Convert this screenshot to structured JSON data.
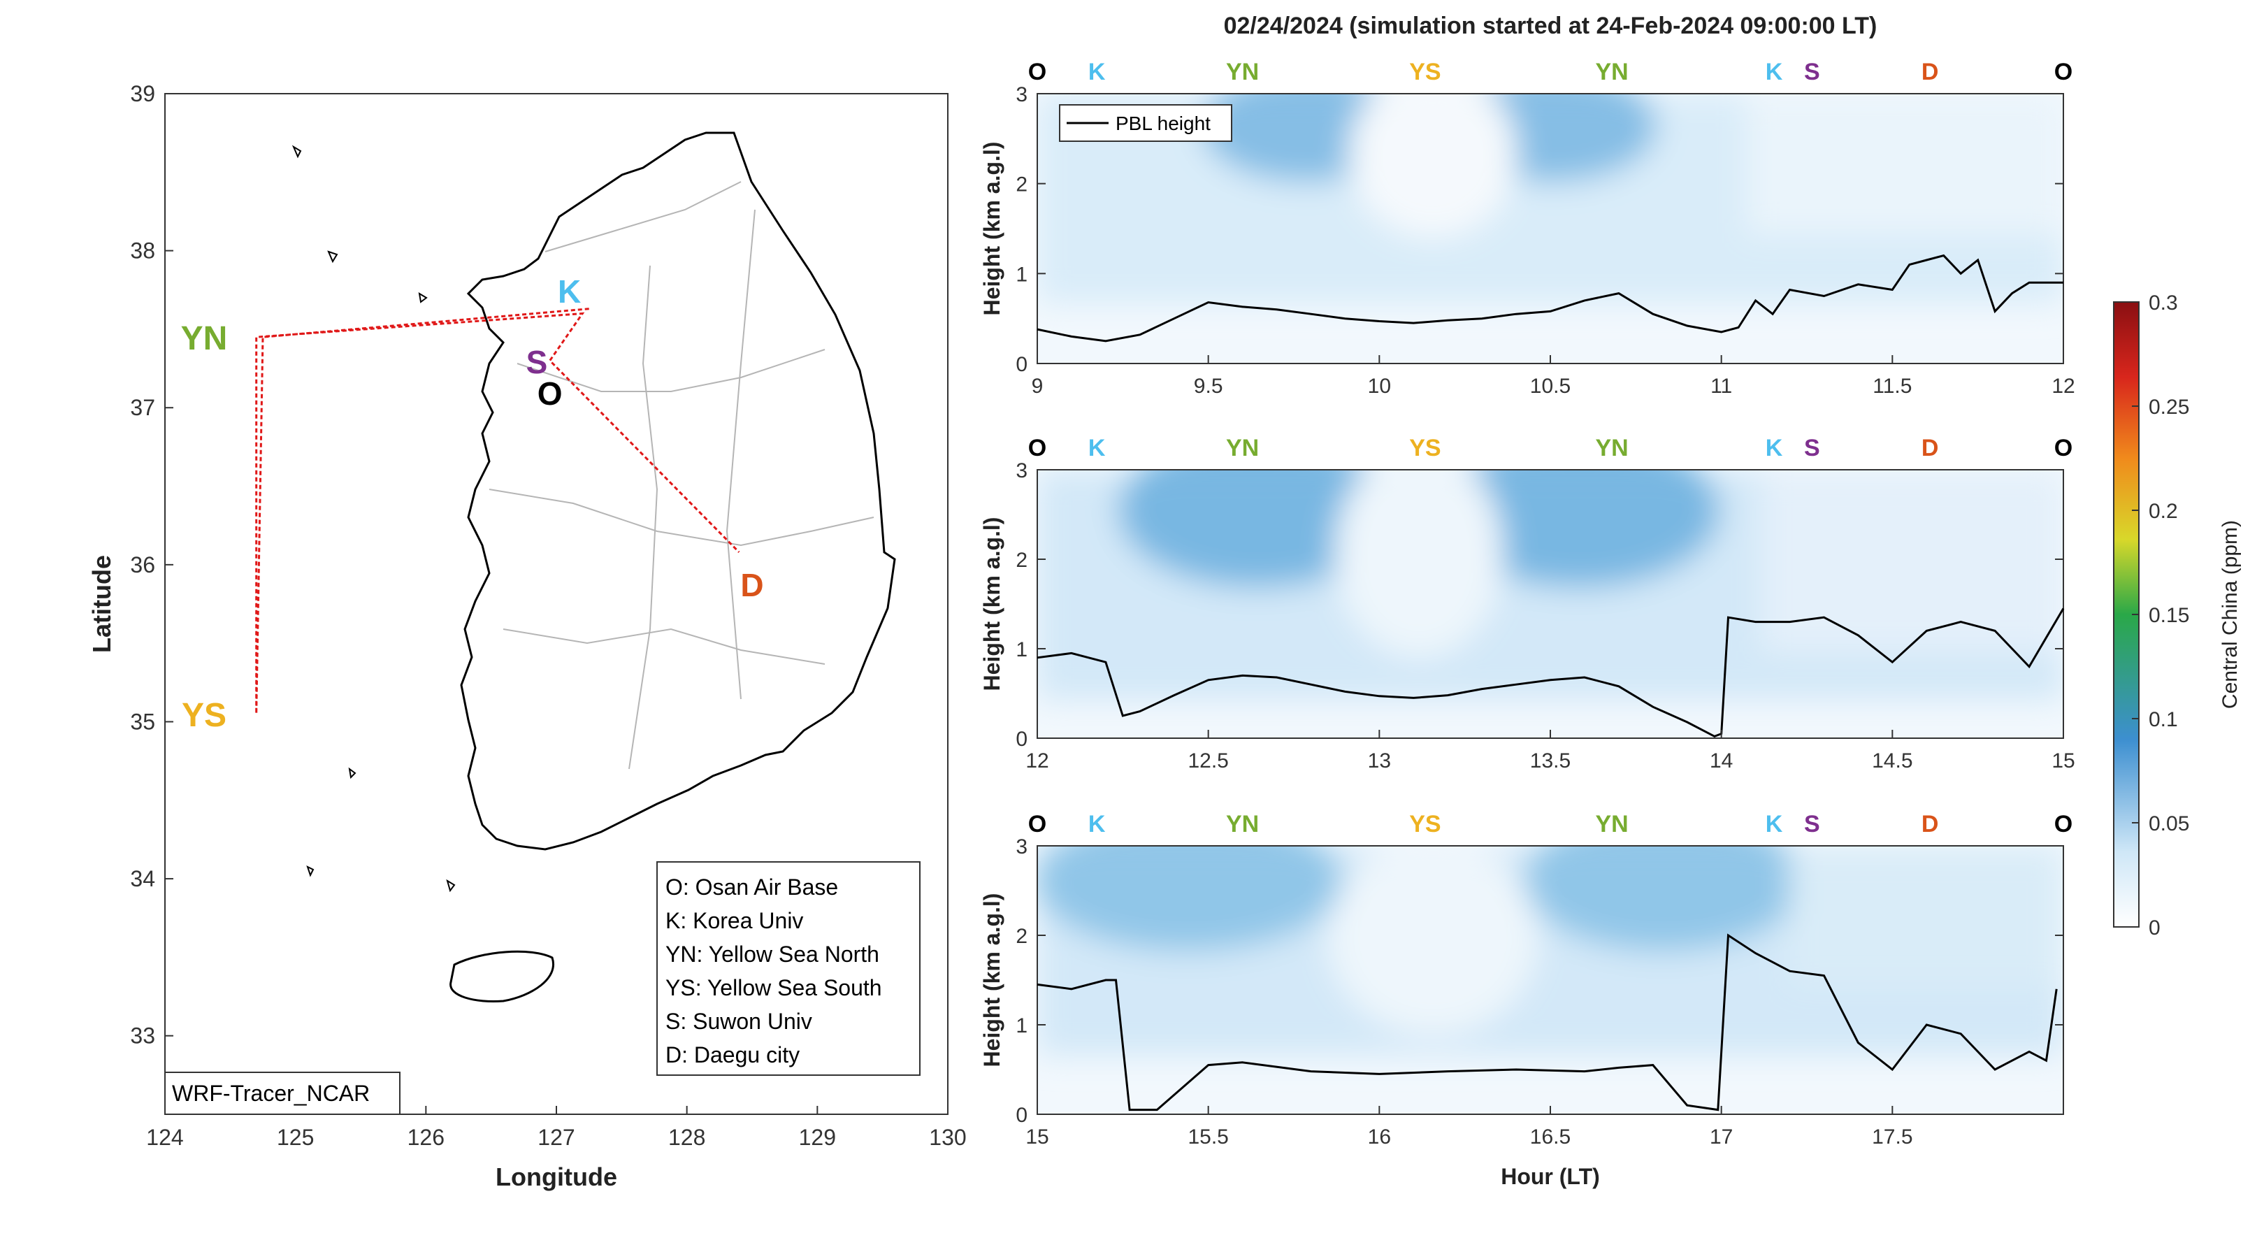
{
  "title": "02/24/2024 (simulation started at 24-Feb-2024 09:00:00 LT)",
  "map": {
    "xlabel": "Longitude",
    "ylabel": "Latitude",
    "xticks": [
      "124",
      "125",
      "126",
      "127",
      "128",
      "129",
      "130"
    ],
    "yticks": [
      "33",
      "34",
      "35",
      "36",
      "37",
      "38",
      "39"
    ],
    "xlim": [
      124,
      130
    ],
    "ylim": [
      32.5,
      39
    ],
    "model_label": "WRF-Tracer_NCAR",
    "sites": [
      {
        "code": "O",
        "lon": 126.95,
        "lat": 37.1,
        "color": "#000000"
      },
      {
        "code": "K",
        "lon": 127.1,
        "lat": 37.75,
        "color": "#4DBEEE"
      },
      {
        "code": "S",
        "lon": 126.85,
        "lat": 37.3,
        "color": "#7E2F8E"
      },
      {
        "code": "D",
        "lon": 128.5,
        "lat": 35.88,
        "color": "#D95319"
      },
      {
        "code": "YN",
        "lon": 124.3,
        "lat": 37.45,
        "color": "#77AC30"
      },
      {
        "code": "YS",
        "lon": 124.3,
        "lat": 35.05,
        "color": "#EDB120"
      }
    ],
    "path": [
      [
        127.25,
        37.63
      ],
      [
        124.75,
        37.45
      ],
      [
        124.7,
        35.05
      ],
      [
        124.7,
        37.45
      ],
      [
        127.2,
        37.6
      ],
      [
        126.95,
        37.3
      ],
      [
        128.4,
        36.08
      ]
    ],
    "legend": [
      "O: Osan Air Base",
      "K: Korea Univ",
      "YN: Yellow Sea North",
      "YS: Yellow Sea South",
      "S: Suwon Univ",
      "D: Daegu city"
    ]
  },
  "panels": {
    "ylabel": "Height (km a.g.l)",
    "xlabel": "Hour (LT)",
    "legend_label": "PBL height",
    "top_labels": [
      "O",
      "K",
      "YN",
      "YS",
      "YN",
      "K",
      "S",
      "D",
      "O"
    ],
    "top_label_colors": [
      "#000000",
      "#4DBEEE",
      "#77AC30",
      "#EDB120",
      "#77AC30",
      "#4DBEEE",
      "#7E2F8E",
      "#D95319",
      "#000000"
    ],
    "items": [
      {
        "xticks": [
          "9",
          "9.5",
          "10",
          "10.5",
          "11",
          "11.5",
          "12"
        ],
        "yticks": [
          "0",
          "1",
          "2",
          "3"
        ]
      },
      {
        "xticks": [
          "12",
          "12.5",
          "13",
          "13.5",
          "14",
          "14.5",
          "15"
        ],
        "yticks": [
          "0",
          "1",
          "2",
          "3"
        ]
      },
      {
        "xticks": [
          "15",
          "15.5",
          "16",
          "16.5",
          "17",
          "17.5"
        ],
        "yticks": [
          "0",
          "1",
          "2",
          "3"
        ]
      }
    ]
  },
  "colorbar": {
    "label": "Central China (ppm)",
    "ticks": [
      "0",
      "0.05",
      "0.1",
      "0.15",
      "0.2",
      "0.25",
      "0.3"
    ],
    "range": [
      0,
      0.3
    ]
  },
  "chart_data": [
    {
      "type": "line",
      "title": "02/24/2024 (simulation started at 24-Feb-2024 09:00:00 LT)",
      "series": [
        {
          "name": "PBL height",
          "x": [
            9.0,
            9.1,
            9.2,
            9.3,
            9.4,
            9.5,
            9.6,
            9.7,
            9.8,
            9.9,
            10.0,
            10.1,
            10.2,
            10.3,
            10.4,
            10.5,
            10.6,
            10.7,
            10.8,
            10.9,
            11.0,
            11.05,
            11.1,
            11.15,
            11.2,
            11.3,
            11.4,
            11.5,
            11.55,
            11.6,
            11.65,
            11.7,
            11.75,
            11.8,
            11.85,
            11.9,
            12.0
          ],
          "y": [
            0.38,
            0.3,
            0.25,
            0.32,
            0.5,
            0.68,
            0.63,
            0.6,
            0.55,
            0.5,
            0.47,
            0.45,
            0.48,
            0.5,
            0.55,
            0.58,
            0.7,
            0.78,
            0.55,
            0.42,
            0.35,
            0.4,
            0.7,
            0.55,
            0.82,
            0.75,
            0.88,
            0.82,
            1.1,
            1.15,
            1.2,
            1.0,
            1.15,
            0.58,
            0.78,
            0.9,
            0.9
          ]
        }
      ],
      "xlabel": "",
      "ylabel": "Height (km a.g.l)",
      "xlim": [
        9,
        12
      ],
      "ylim": [
        0,
        3
      ]
    },
    {
      "type": "line",
      "series": [
        {
          "name": "PBL height",
          "x": [
            12.0,
            12.1,
            12.2,
            12.25,
            12.3,
            12.4,
            12.5,
            12.6,
            12.7,
            12.8,
            12.9,
            13.0,
            13.1,
            13.2,
            13.3,
            13.4,
            13.5,
            13.6,
            13.7,
            13.8,
            13.9,
            13.98,
            14.0,
            14.02,
            14.1,
            14.2,
            14.3,
            14.4,
            14.5,
            14.6,
            14.7,
            14.8,
            14.9,
            15.0
          ],
          "y": [
            0.9,
            0.95,
            0.85,
            0.25,
            0.3,
            0.48,
            0.65,
            0.7,
            0.68,
            0.6,
            0.52,
            0.47,
            0.45,
            0.48,
            0.55,
            0.6,
            0.65,
            0.68,
            0.58,
            0.35,
            0.18,
            0.02,
            0.05,
            1.35,
            1.3,
            1.3,
            1.35,
            1.15,
            0.85,
            1.2,
            1.3,
            1.2,
            0.8,
            1.45
          ]
        }
      ],
      "xlabel": "",
      "ylabel": "Height (km a.g.l)",
      "xlim": [
        12,
        15
      ],
      "ylim": [
        0,
        3
      ]
    },
    {
      "type": "line",
      "series": [
        {
          "name": "PBL height",
          "x": [
            15.0,
            15.1,
            15.2,
            15.23,
            15.27,
            15.35,
            15.5,
            15.6,
            15.8,
            16.0,
            16.2,
            16.4,
            16.6,
            16.7,
            16.8,
            16.9,
            16.99,
            17.02,
            17.1,
            17.2,
            17.3,
            17.4,
            17.5,
            17.6,
            17.7,
            17.8,
            17.9,
            17.95,
            17.98
          ],
          "y": [
            1.45,
            1.4,
            1.5,
            1.5,
            0.05,
            0.05,
            0.55,
            0.58,
            0.48,
            0.45,
            0.48,
            0.5,
            0.48,
            0.52,
            0.55,
            0.1,
            0.05,
            2.0,
            1.8,
            1.6,
            1.55,
            0.8,
            0.5,
            1.0,
            0.9,
            0.5,
            0.7,
            0.6,
            1.4
          ]
        }
      ],
      "xlabel": "Hour (LT)",
      "ylabel": "Height (km a.g.l)",
      "xlim": [
        15,
        18
      ],
      "ylim": [
        0,
        3
      ]
    }
  ]
}
